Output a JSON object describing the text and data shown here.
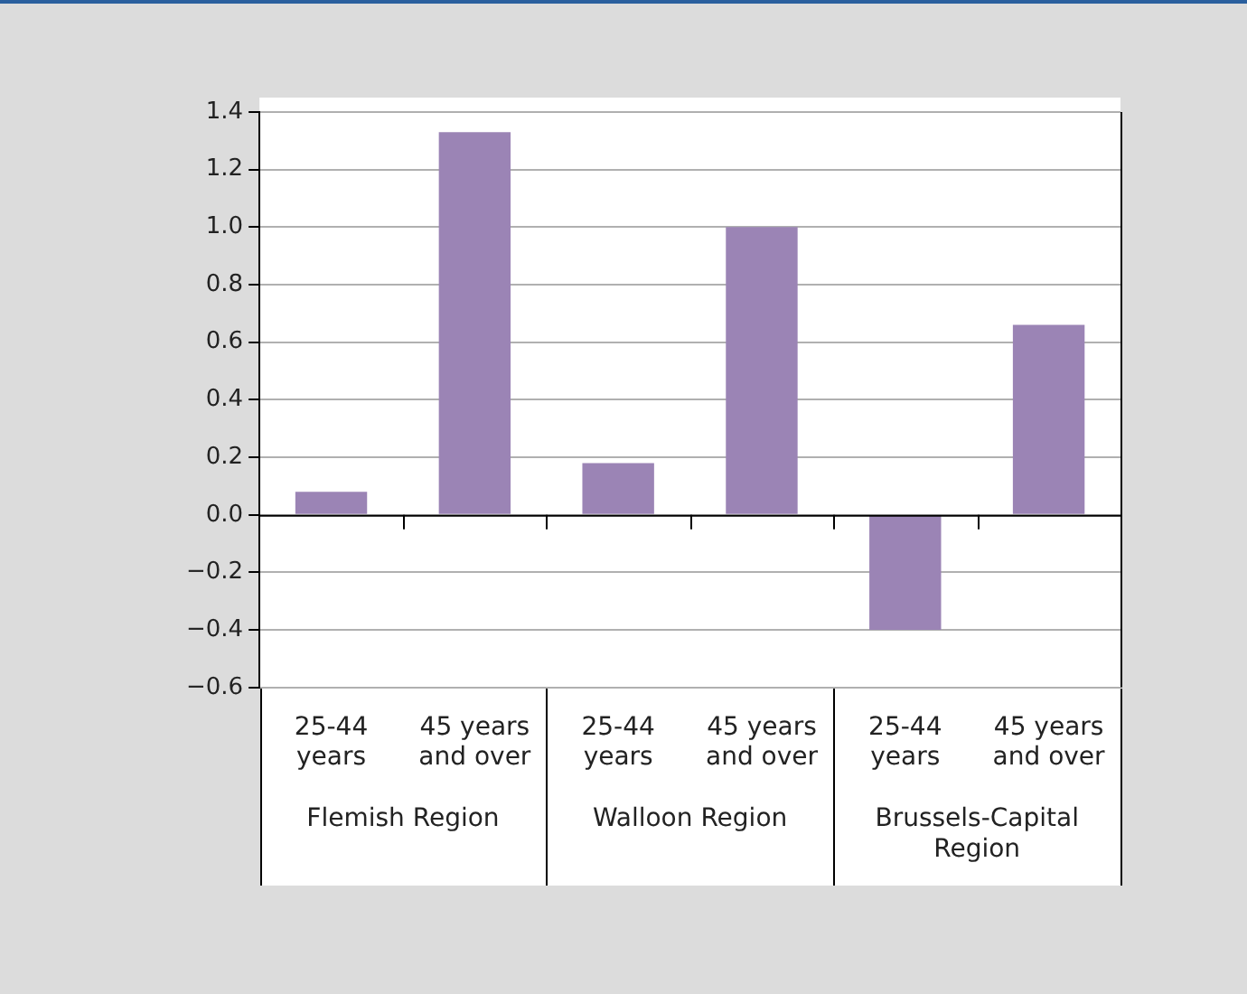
{
  "chart_data": {
    "type": "bar",
    "categories": [
      "25-44 years",
      "45 years and over",
      "25-44 years",
      "45 years and over",
      "25-44 years",
      "45 years and over"
    ],
    "values": [
      0.08,
      1.33,
      0.18,
      1.0,
      -0.4,
      0.66
    ],
    "color": "#9b84b5",
    "ylim": [
      -0.6,
      1.4
    ],
    "yticks": [
      {
        "value": -0.6,
        "label": "−0.6"
      },
      {
        "value": -0.4,
        "label": "−0.4"
      },
      {
        "value": -0.2,
        "label": "−0.2"
      },
      {
        "value": 0,
        "label": "0.0"
      },
      {
        "value": 0.2,
        "label": "0.2"
      },
      {
        "value": 0.4,
        "label": "0.4"
      },
      {
        "value": 0.6,
        "label": "0.6"
      },
      {
        "value": 0.8,
        "label": "0.8"
      },
      {
        "value": 1.0,
        "label": "1.0"
      },
      {
        "value": 1.2,
        "label": "1.2"
      },
      {
        "value": 1.4,
        "label": "1.4"
      }
    ],
    "grid": "y",
    "annotations": [
      "Flemish Region",
      "Walloon Region",
      "Brussels-Capital Region"
    ]
  }
}
